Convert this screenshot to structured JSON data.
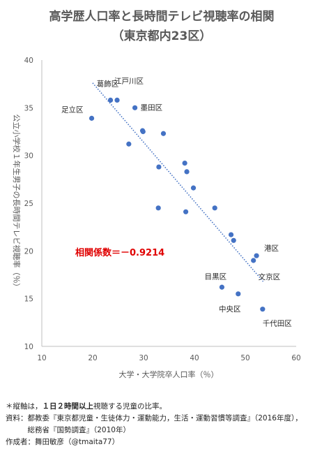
{
  "chart_data": {
    "type": "scatter",
    "title_line1": "高学歴人口率と長時間テレビ視聴率の相関",
    "title_line2": "（東京都内23区）",
    "xlabel": "大学・大学院卒人口率（％）",
    "ylabel": "公立小学校１年生男子の長時間テレビ視聴率（％）",
    "xlim": [
      10,
      60
    ],
    "ylim": [
      10,
      40
    ],
    "xticks": [
      "10",
      "20",
      "30",
      "40",
      "50",
      "60"
    ],
    "yticks": [
      "10",
      "15",
      "20",
      "25",
      "30",
      "35",
      "40"
    ],
    "grid": false,
    "correlation_label": "相関係数＝－0.9214",
    "trendline": {
      "style": "dotted",
      "x": [
        20,
        53.5
      ],
      "y": [
        37.6,
        16.8
      ]
    },
    "marker_color": "#4472c4",
    "points": [
      {
        "x": 19.8,
        "y": 33.9,
        "label": "足立区"
      },
      {
        "x": 23.5,
        "y": 35.8,
        "label": "葛飾区"
      },
      {
        "x": 24.8,
        "y": 35.8,
        "label": "江戸川区"
      },
      {
        "x": 28.3,
        "y": 35.0,
        "label": "墨田区"
      },
      {
        "x": 29.8,
        "y": 32.6,
        "label": ""
      },
      {
        "x": 29.9,
        "y": 32.5,
        "label": ""
      },
      {
        "x": 33.9,
        "y": 32.3,
        "label": ""
      },
      {
        "x": 27.1,
        "y": 31.2,
        "label": ""
      },
      {
        "x": 38.1,
        "y": 29.2,
        "label": ""
      },
      {
        "x": 33.0,
        "y": 28.8,
        "label": ""
      },
      {
        "x": 38.5,
        "y": 28.3,
        "label": ""
      },
      {
        "x": 39.8,
        "y": 26.6,
        "label": ""
      },
      {
        "x": 32.9,
        "y": 24.5,
        "label": ""
      },
      {
        "x": 44.0,
        "y": 24.5,
        "label": ""
      },
      {
        "x": 38.3,
        "y": 24.1,
        "label": ""
      },
      {
        "x": 47.2,
        "y": 21.7,
        "label": ""
      },
      {
        "x": 47.7,
        "y": 21.1,
        "label": ""
      },
      {
        "x": 52.2,
        "y": 19.5,
        "label": "港区"
      },
      {
        "x": 51.6,
        "y": 19.0,
        "label": "文京区"
      },
      {
        "x": 45.4,
        "y": 16.2,
        "label": "目黒区"
      },
      {
        "x": 48.6,
        "y": 15.5,
        "label": "中央区"
      },
      {
        "x": 53.4,
        "y": 13.9,
        "label": "千代田区"
      }
    ]
  },
  "notes": {
    "line1_pre": "＊縦軸は，",
    "line1_bold": "１日２時間以上",
    "line1_post": "視聴する児童の比率。",
    "line2": "資料：都教委『東京都児童・生徒体力・運動能力，生活・運動習慣等調査』（2016年度），",
    "line3": "　　　総務省『国勢調査』（2010年）",
    "line4": "作成者：舞田敏彦（@tmaita77）"
  }
}
